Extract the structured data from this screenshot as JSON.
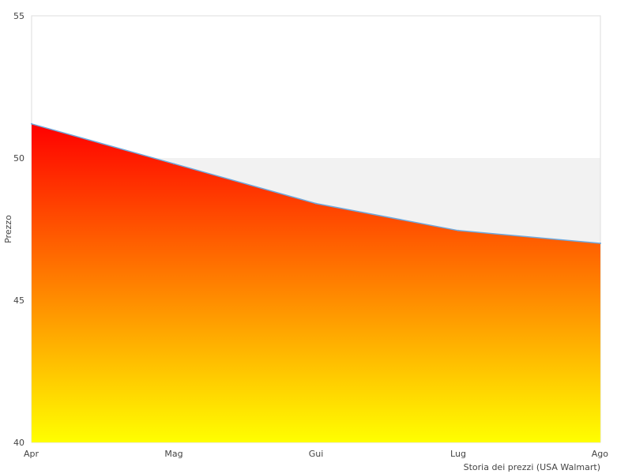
{
  "chart_data": {
    "type": "area",
    "title": "",
    "xlabel": "Storia dei prezzi (USA Walmart)",
    "ylabel": "Prezzo",
    "categories": [
      "Apr",
      "Mag",
      "Gui",
      "Lug",
      "Ago"
    ],
    "values": [
      51.2,
      49.8,
      48.4,
      47.45,
      47.0
    ],
    "ylim": [
      40,
      55
    ],
    "yticks": [
      "40",
      "45",
      "50",
      "55"
    ],
    "grid": "alternating horizontal bands",
    "legend": "none",
    "colors": {
      "fill_top": "#ff0000",
      "fill_bottom": "#ffff00",
      "line": "#6fa8dc",
      "band": "#f2f2f2",
      "plot_border": "#dddddd"
    }
  }
}
